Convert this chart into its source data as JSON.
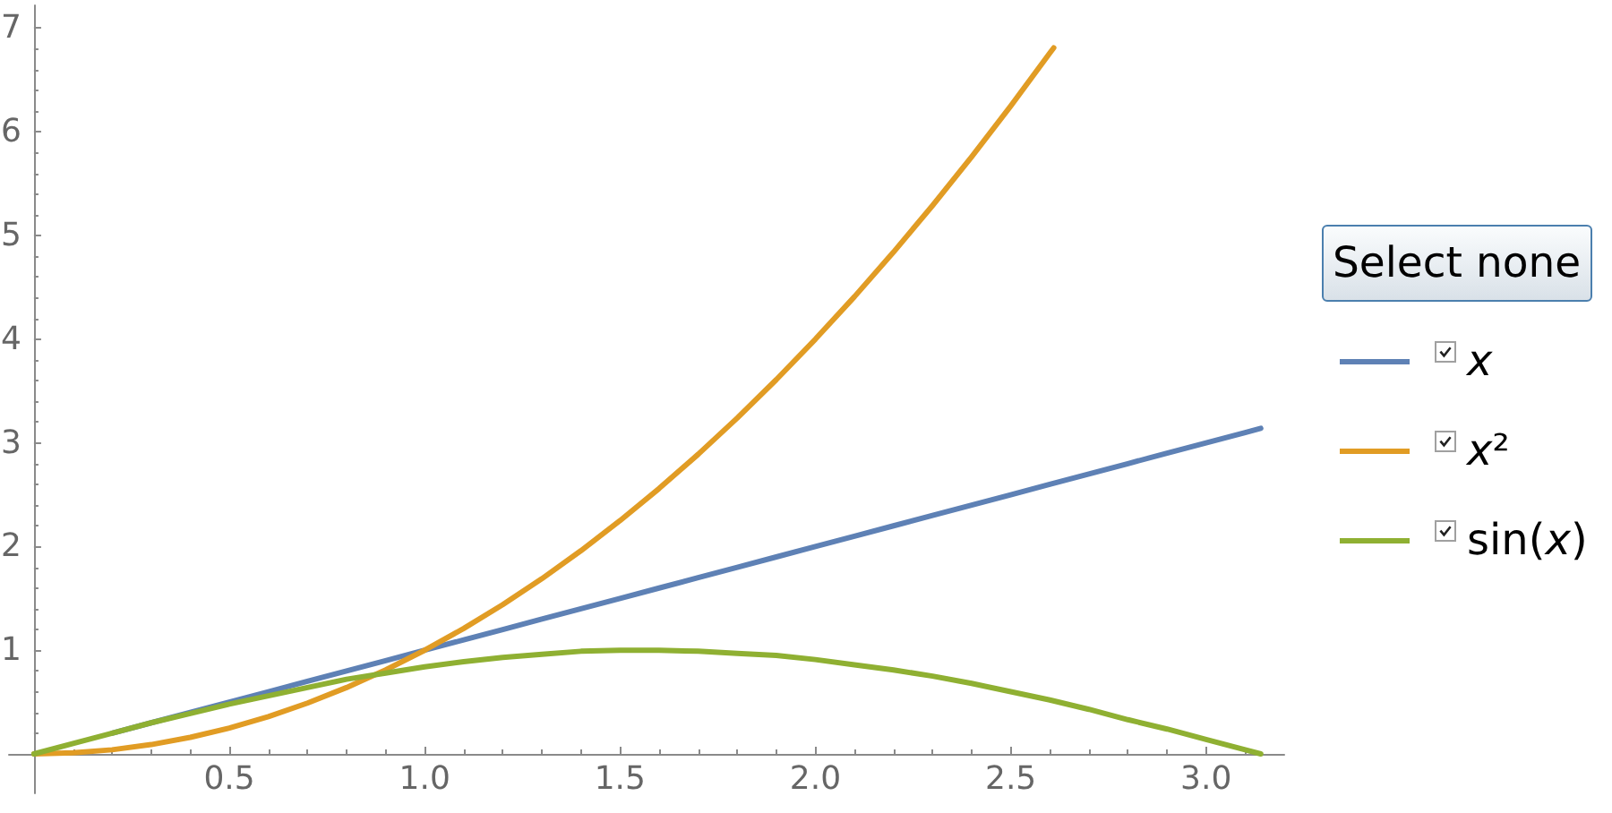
{
  "chart_data": {
    "type": "line",
    "x": [
      0,
      0.1,
      0.2,
      0.3,
      0.4,
      0.5,
      0.6,
      0.7,
      0.8,
      0.9,
      1,
      1.1,
      1.2,
      1.3,
      1.4,
      1.5,
      1.6,
      1.7,
      1.8,
      1.9,
      2,
      2.1,
      2.2,
      2.3,
      2.4,
      2.5,
      2.6,
      2.7,
      2.8,
      2.9,
      3,
      3.1,
      3.14
    ],
    "series": [
      {
        "name": "x",
        "color": "#5e81b5",
        "values": [
          null,
          null,
          0.2,
          0.3,
          0.4,
          0.5,
          0.6,
          0.7,
          0.8,
          0.9,
          1,
          1.1,
          1.2,
          1.3,
          1.4,
          1.5,
          1.6,
          1.7,
          1.8,
          1.9,
          2,
          2.1,
          2.2,
          2.3,
          2.4,
          2.5,
          2.6,
          2.7,
          2.8,
          2.9,
          3,
          3.1,
          3.14
        ]
      },
      {
        "name": "x²",
        "color": "#e19c24",
        "x": [
          0,
          0.1,
          0.2,
          0.3,
          0.4,
          0.5,
          0.6,
          0.7,
          0.8,
          0.9,
          1,
          1.1,
          1.2,
          1.3,
          1.4,
          1.5,
          1.6,
          1.7,
          1.8,
          1.9,
          2,
          2.1,
          2.2,
          2.3,
          2.4,
          2.5,
          2.6,
          2.61
        ],
        "values": [
          0,
          0.01,
          0.04,
          0.09,
          0.16,
          0.25,
          0.36,
          0.49,
          0.64,
          0.81,
          1,
          1.21,
          1.44,
          1.69,
          1.96,
          2.25,
          2.56,
          2.89,
          3.24,
          3.61,
          4,
          4.41,
          4.84,
          5.29,
          5.76,
          6.25,
          6.76,
          6.81
        ]
      },
      {
        "name": "sin(x)",
        "color": "#8fb032",
        "values": [
          0,
          0.1,
          0.2,
          0.3,
          0.39,
          0.48,
          0.56,
          0.64,
          0.72,
          0.78,
          0.84,
          0.89,
          0.93,
          0.96,
          0.99,
          1,
          1,
          0.99,
          0.97,
          0.95,
          0.91,
          0.86,
          0.81,
          0.75,
          0.68,
          0.6,
          0.52,
          0.43,
          0.33,
          0.24,
          0.14,
          0.04,
          0
        ]
      }
    ],
    "xlim": [
      -0.064,
      3.2
    ],
    "ylim": [
      -0.38,
      7.22
    ],
    "xticks": [
      {
        "value": 0.1,
        "label": null
      },
      {
        "value": 0.2,
        "label": null
      },
      {
        "value": 0.3,
        "label": null
      },
      {
        "value": 0.4,
        "label": null
      },
      0.5,
      {
        "value": 0.6,
        "label": null
      },
      {
        "value": 0.7,
        "label": null
      },
      {
        "value": 0.8,
        "label": null
      },
      {
        "value": 0.9,
        "label": null
      },
      {
        "value": 1,
        "label": "1.0"
      },
      {
        "value": 1.1,
        "label": null
      },
      {
        "value": 1.2,
        "label": null
      },
      {
        "value": 1.3,
        "label": null
      },
      {
        "value": 1.4,
        "label": null
      },
      1.5,
      {
        "value": 1.6,
        "label": null
      },
      {
        "value": 1.7,
        "label": null
      },
      {
        "value": 1.8,
        "label": null
      },
      {
        "value": 1.9,
        "label": null
      },
      {
        "value": 2,
        "label": "2.0"
      },
      {
        "value": 2.1,
        "label": null
      },
      {
        "value": 2.2,
        "label": null
      },
      {
        "value": 2.3,
        "label": null
      },
      {
        "value": 2.4,
        "label": null
      },
      2.5,
      {
        "value": 2.6,
        "label": null
      },
      {
        "value": 2.7,
        "label": null
      },
      {
        "value": 2.8,
        "label": null
      },
      {
        "value": 2.9,
        "label": null
      },
      {
        "value": 3,
        "label": "3.0"
      },
      {
        "value": 3.1,
        "label": null
      }
    ],
    "yticks": [
      {
        "value": 0.2,
        "label": null
      },
      {
        "value": 0.4,
        "label": null
      },
      {
        "value": 0.6,
        "label": null
      },
      {
        "value": 0.8,
        "label": null
      },
      1,
      {
        "value": 1.2,
        "label": null
      },
      {
        "value": 1.4,
        "label": null
      },
      {
        "value": 1.6,
        "label": null
      },
      {
        "value": 1.8,
        "label": null
      },
      2,
      {
        "value": 2.2,
        "label": null
      },
      {
        "value": 2.4,
        "label": null
      },
      {
        "value": 2.6,
        "label": null
      },
      {
        "value": 2.8,
        "label": null
      },
      3,
      {
        "value": 3.2,
        "label": null
      },
      {
        "value": 3.4,
        "label": null
      },
      {
        "value": 3.6,
        "label": null
      },
      {
        "value": 3.8,
        "label": null
      },
      4,
      {
        "value": 4.2,
        "label": null
      },
      {
        "value": 4.4,
        "label": null
      },
      {
        "value": 4.6,
        "label": null
      },
      {
        "value": 4.8,
        "label": null
      },
      5,
      {
        "value": 5.2,
        "label": null
      },
      {
        "value": 5.4,
        "label": null
      },
      {
        "value": 5.6,
        "label": null
      },
      {
        "value": 5.8,
        "label": null
      },
      6,
      {
        "value": 6.2,
        "label": null
      },
      {
        "value": 6.4,
        "label": null
      },
      {
        "value": 6.6,
        "label": null
      },
      {
        "value": 6.8,
        "label": null
      },
      7
    ],
    "marker": "none",
    "legend": "right",
    "annotations": [
      "Select none"
    ]
  }
}
